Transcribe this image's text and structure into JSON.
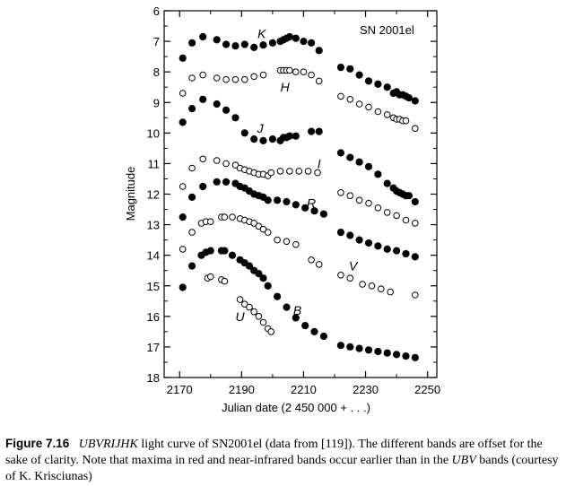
{
  "chart_data": {
    "type": "scatter",
    "title": "",
    "annotation": "SN 2001el",
    "xlabel": "Julian date (2 450 000 + . . .)",
    "ylabel": "Magnitude",
    "xlim": [
      2165,
      2253
    ],
    "ylim": [
      18,
      6
    ],
    "y_inverted": true,
    "xticks": [
      2170,
      2190,
      2210,
      2230,
      2250
    ],
    "yticks": [
      6,
      7,
      8,
      9,
      10,
      11,
      12,
      13,
      14,
      15,
      16,
      17,
      18
    ],
    "grid": false,
    "series": [
      {
        "name": "K",
        "marker": "filled",
        "points": [
          [
            2171,
            7.55
          ],
          [
            2174,
            7.05
          ],
          [
            2177.5,
            6.85
          ],
          [
            2182,
            6.95
          ],
          [
            2185,
            7.1
          ],
          [
            2188,
            7.15
          ],
          [
            2191,
            7.1
          ],
          [
            2194,
            7.2
          ],
          [
            2197,
            7.12
          ],
          [
            2200,
            7.05
          ],
          [
            2202.5,
            7.0
          ],
          [
            2203.5,
            6.95
          ],
          [
            2204.5,
            6.9
          ],
          [
            2205.5,
            6.85
          ],
          [
            2207.5,
            6.9
          ],
          [
            2210,
            7.0
          ],
          [
            2212.5,
            7.05
          ],
          [
            2215,
            7.3
          ],
          [
            2222,
            7.85
          ],
          [
            2225,
            7.9
          ],
          [
            2228,
            8.1
          ],
          [
            2231,
            8.3
          ],
          [
            2234,
            8.4
          ],
          [
            2237,
            8.5
          ],
          [
            2239,
            8.7
          ],
          [
            2240,
            8.65
          ],
          [
            2241,
            8.75
          ],
          [
            2242,
            8.75
          ],
          [
            2243,
            8.8
          ],
          [
            2244,
            8.85
          ],
          [
            2246,
            8.95
          ]
        ]
      },
      {
        "name": "H",
        "marker": "open",
        "points": [
          [
            2171,
            8.7
          ],
          [
            2174,
            8.2
          ],
          [
            2177.5,
            8.1
          ],
          [
            2182,
            8.2
          ],
          [
            2185,
            8.25
          ],
          [
            2188,
            8.25
          ],
          [
            2191,
            8.25
          ],
          [
            2194,
            8.15
          ],
          [
            2197,
            8.1
          ],
          [
            2202.5,
            7.95
          ],
          [
            2203.5,
            7.95
          ],
          [
            2204.5,
            7.95
          ],
          [
            2205.5,
            7.95
          ],
          [
            2207.5,
            8.0
          ],
          [
            2210,
            8.0
          ],
          [
            2212.5,
            8.1
          ],
          [
            2215,
            8.3
          ],
          [
            2222,
            8.8
          ],
          [
            2225,
            8.9
          ],
          [
            2228,
            9.05
          ],
          [
            2231,
            9.15
          ],
          [
            2234,
            9.3
          ],
          [
            2237,
            9.4
          ],
          [
            2239,
            9.5
          ],
          [
            2240,
            9.55
          ],
          [
            2241,
            9.55
          ],
          [
            2242,
            9.6
          ],
          [
            2243,
            9.6
          ],
          [
            2246,
            9.85
          ]
        ]
      },
      {
        "name": "J",
        "marker": "filled",
        "points": [
          [
            2171,
            9.65
          ],
          [
            2174,
            9.2
          ],
          [
            2177.5,
            8.9
          ],
          [
            2182,
            9.05
          ],
          [
            2185,
            9.25
          ],
          [
            2188,
            9.5
          ],
          [
            2191,
            10.0
          ],
          [
            2194,
            10.2
          ],
          [
            2197,
            10.25
          ],
          [
            2200,
            10.2
          ],
          [
            2202.5,
            10.25
          ],
          [
            2203.5,
            10.15
          ],
          [
            2204.5,
            10.15
          ],
          [
            2205.5,
            10.1
          ],
          [
            2207.5,
            10.1
          ],
          [
            2212.5,
            9.95
          ],
          [
            2215,
            9.95
          ],
          [
            2222,
            10.65
          ],
          [
            2225,
            10.8
          ],
          [
            2228,
            10.95
          ],
          [
            2231,
            11.1
          ],
          [
            2234,
            11.35
          ],
          [
            2237,
            11.65
          ],
          [
            2239,
            11.8
          ],
          [
            2240,
            11.9
          ],
          [
            2241,
            11.95
          ],
          [
            2242,
            12.0
          ],
          [
            2243,
            12.05
          ],
          [
            2244,
            12.05
          ],
          [
            2246,
            12.25
          ]
        ]
      },
      {
        "name": "I",
        "marker": "open",
        "points": [
          [
            2171,
            11.75
          ],
          [
            2174,
            11.15
          ],
          [
            2177.5,
            10.85
          ],
          [
            2182,
            10.9
          ],
          [
            2185,
            11.0
          ],
          [
            2188,
            11.05
          ],
          [
            2189.5,
            11.15
          ],
          [
            2191,
            11.2
          ],
          [
            2192.5,
            11.25
          ],
          [
            2194,
            11.3
          ],
          [
            2195.5,
            11.35
          ],
          [
            2197,
            11.35
          ],
          [
            2198.5,
            11.4
          ],
          [
            2199.5,
            11.3
          ],
          [
            2202.5,
            11.25
          ],
          [
            2205.5,
            11.25
          ],
          [
            2208.5,
            11.25
          ],
          [
            2211.5,
            11.25
          ],
          [
            2214.5,
            11.3
          ],
          [
            2222,
            11.95
          ],
          [
            2225,
            12.05
          ],
          [
            2228,
            12.2
          ],
          [
            2231,
            12.3
          ],
          [
            2234,
            12.45
          ],
          [
            2237,
            12.6
          ],
          [
            2240,
            12.7
          ],
          [
            2243,
            12.85
          ],
          [
            2246,
            12.95
          ]
        ]
      },
      {
        "name": "R",
        "marker": "filled",
        "points": [
          [
            2171,
            12.75
          ],
          [
            2174,
            12.1
          ],
          [
            2177.5,
            11.75
          ],
          [
            2182,
            11.6
          ],
          [
            2185,
            11.6
          ],
          [
            2188,
            11.65
          ],
          [
            2189.5,
            11.75
          ],
          [
            2191,
            11.8
          ],
          [
            2192.5,
            11.9
          ],
          [
            2194,
            12.0
          ],
          [
            2195.5,
            12.05
          ],
          [
            2197,
            12.1
          ],
          [
            2198.5,
            12.2
          ],
          [
            2201.5,
            12.2
          ],
          [
            2204.5,
            12.25
          ],
          [
            2207.5,
            12.35
          ],
          [
            2210.5,
            12.45
          ],
          [
            2213.5,
            12.55
          ],
          [
            2216.5,
            12.65
          ],
          [
            2222,
            13.25
          ],
          [
            2225,
            13.35
          ],
          [
            2228,
            13.5
          ],
          [
            2231,
            13.6
          ],
          [
            2234,
            13.7
          ],
          [
            2237,
            13.8
          ],
          [
            2240,
            13.85
          ],
          [
            2243,
            13.95
          ],
          [
            2246,
            14.05
          ]
        ]
      },
      {
        "name": "V",
        "marker": "open",
        "points": [
          [
            2171,
            13.8
          ],
          [
            2174,
            13.25
          ],
          [
            2177,
            12.95
          ],
          [
            2178.5,
            12.9
          ],
          [
            2180,
            12.9
          ],
          [
            2183.5,
            12.75
          ],
          [
            2184.5,
            12.75
          ],
          [
            2187,
            12.75
          ],
          [
            2189.5,
            12.8
          ],
          [
            2191,
            12.85
          ],
          [
            2192.5,
            12.9
          ],
          [
            2194,
            12.95
          ],
          [
            2195.5,
            13.05
          ],
          [
            2197,
            13.15
          ],
          [
            2198.5,
            13.25
          ],
          [
            2201.5,
            13.5
          ],
          [
            2204.5,
            13.55
          ],
          [
            2207.5,
            13.65
          ],
          [
            2212.5,
            14.15
          ],
          [
            2215,
            14.3
          ],
          [
            2222,
            14.65
          ],
          [
            2225,
            14.75
          ],
          [
            2229,
            14.95
          ],
          [
            2232,
            15.0
          ],
          [
            2235,
            15.1
          ],
          [
            2238,
            15.2
          ],
          [
            2246,
            15.3
          ]
        ]
      },
      {
        "name": "B",
        "marker": "filled",
        "points": [
          [
            2171,
            15.05
          ],
          [
            2174,
            14.35
          ],
          [
            2177,
            14.0
          ],
          [
            2178.5,
            13.9
          ],
          [
            2180,
            13.85
          ],
          [
            2183.5,
            13.85
          ],
          [
            2184.5,
            13.85
          ],
          [
            2187,
            14.0
          ],
          [
            2189.5,
            14.15
          ],
          [
            2191,
            14.25
          ],
          [
            2192.5,
            14.35
          ],
          [
            2194,
            14.5
          ],
          [
            2195.5,
            14.6
          ],
          [
            2197,
            14.75
          ],
          [
            2198.5,
            15.0
          ],
          [
            2201.5,
            15.35
          ],
          [
            2204.5,
            15.7
          ],
          [
            2207.5,
            16.05
          ],
          [
            2210.5,
            16.3
          ],
          [
            2213.5,
            16.5
          ],
          [
            2216.5,
            16.65
          ],
          [
            2222,
            16.95
          ],
          [
            2225,
            17.0
          ],
          [
            2228,
            17.05
          ],
          [
            2231,
            17.1
          ],
          [
            2234,
            17.15
          ],
          [
            2237,
            17.2
          ],
          [
            2240,
            17.25
          ],
          [
            2243,
            17.3
          ],
          [
            2246,
            17.35
          ]
        ]
      },
      {
        "name": "U",
        "marker": "open",
        "points": [
          [
            2179,
            14.75
          ],
          [
            2180,
            14.7
          ],
          [
            2183.5,
            14.8
          ],
          [
            2184.5,
            14.85
          ],
          [
            2189.5,
            15.45
          ],
          [
            2191,
            15.6
          ],
          [
            2192.5,
            15.7
          ],
          [
            2194,
            15.85
          ],
          [
            2195.5,
            16.0
          ],
          [
            2197,
            16.2
          ],
          [
            2198.5,
            16.4
          ],
          [
            2199.5,
            16.5
          ]
        ]
      }
    ],
    "band_label_positions": [
      {
        "text": "K",
        "x": 2196.5,
        "y": 6.75
      },
      {
        "text": "H",
        "x": 2204,
        "y": 8.5
      },
      {
        "text": "J",
        "x": 2196,
        "y": 9.85
      },
      {
        "text": "I",
        "x": 2215,
        "y": 11.0
      },
      {
        "text": "R",
        "x": 2212.5,
        "y": 12.3
      },
      {
        "text": "V",
        "x": 2226,
        "y": 14.35
      },
      {
        "text": "B",
        "x": 2208,
        "y": 15.8
      },
      {
        "text": "U",
        "x": 2189.5,
        "y": 16.0
      }
    ]
  },
  "caption": {
    "figure_number": "Figure 7.16",
    "bands_italic": "UBVRIJHK",
    "text1": " light curve of SN2001el (data from [119]). The different bands are offset for the sake of clarity. Note that maxima in red and near-infrared bands occur earlier than in the ",
    "bands2_italic": "UBV",
    "text2": " bands (courtesy of K. Krisciunas)"
  }
}
